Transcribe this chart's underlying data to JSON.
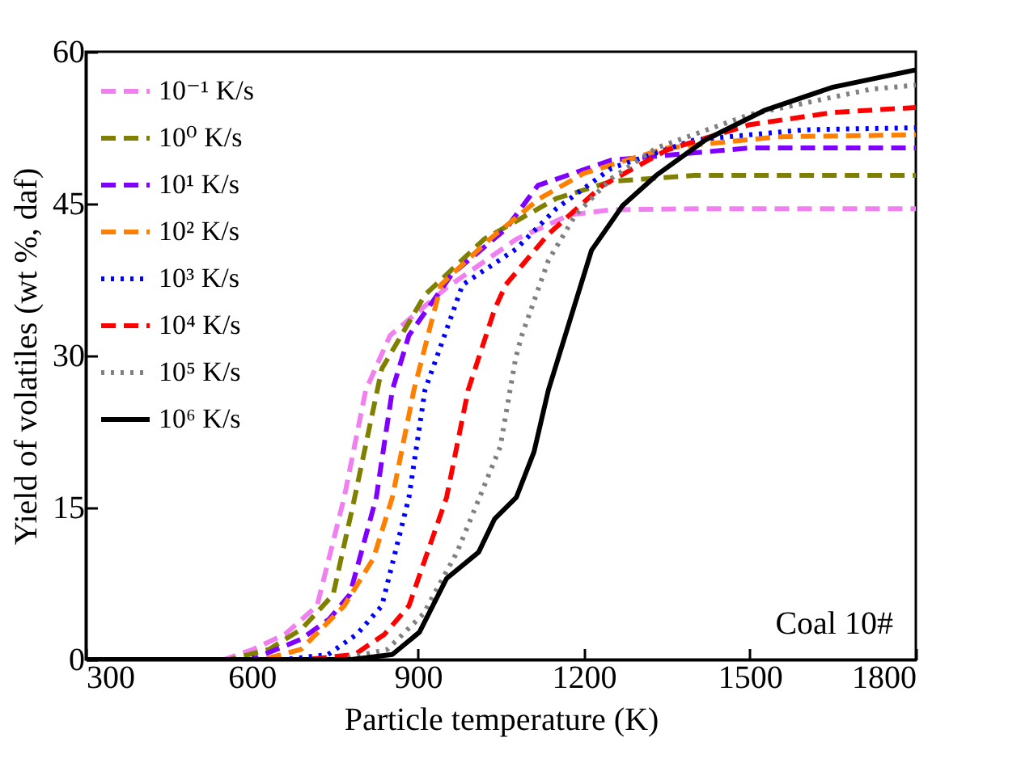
{
  "chart_data": {
    "type": "line",
    "xlabel": "Particle temperature (K)",
    "ylabel": "Yield of volatiles (wt %, daf)",
    "xlim": [
      300,
      1800
    ],
    "ylim": [
      0,
      60
    ],
    "xticks": [
      300,
      600,
      900,
      1200,
      1500,
      1800
    ],
    "yticks": [
      0,
      15,
      30,
      45,
      60
    ],
    "legend": "top left",
    "annotations": [
      "Coal 10#"
    ],
    "series": [
      {
        "name": "10⁻¹ K/s",
        "color": "#f080f0",
        "line_style": "dashed",
        "x": [
          300,
          550,
          602,
          660,
          718,
          767,
          806,
          850,
          952,
          1078,
          1175,
          1250,
          1400,
          1800
        ],
        "values": [
          0,
          0,
          1,
          2.5,
          5.3,
          16,
          26.6,
          32,
          36.7,
          41.5,
          43.9,
          44.4,
          44.5,
          44.5
        ]
      },
      {
        "name": "10⁰ K/s",
        "color": "#808000",
        "line_style": "dashed",
        "x": [
          300,
          560,
          631,
          690,
          747,
          786,
          835,
          913,
          1020,
          1150,
          1250,
          1400,
          1800
        ],
        "values": [
          0,
          0,
          1,
          3,
          6.4,
          16,
          28.7,
          36,
          41.5,
          45.5,
          47.2,
          47.8,
          47.8
        ]
      },
      {
        "name": "10¹ K/s",
        "color": "#8000ff",
        "line_style": "dashed",
        "x": [
          300,
          600,
          689,
          740,
          777,
          825,
          854,
          884,
          961,
          1059,
          1117,
          1250,
          1500,
          1800
        ],
        "values": [
          0,
          0,
          2,
          4,
          6.4,
          16,
          26.6,
          32,
          38,
          42.5,
          46.8,
          49.3,
          50.5,
          50.5
        ]
      },
      {
        "name": "10² K/s",
        "color": "#ff8000",
        "line_style": "dashed",
        "x": [
          300,
          620,
          689,
          767,
          820,
          854,
          893,
          942,
          1030,
          1120,
          1200,
          1350,
          1550,
          1800
        ],
        "values": [
          0,
          0,
          1,
          5.3,
          10,
          16,
          26.6,
          37,
          41.5,
          45.5,
          48,
          50.5,
          51.6,
          51.8
        ]
      },
      {
        "name": "10³ K/s",
        "color": "#0000ff",
        "line_style": "dotted",
        "x": [
          300,
          660,
          738,
          790,
          835,
          884,
          913,
          981,
          1077,
          1150,
          1250,
          1400,
          1600,
          1800
        ],
        "values": [
          0,
          0,
          0.5,
          2.5,
          5.3,
          16,
          26.6,
          37,
          40.5,
          44.5,
          48.5,
          51.3,
          52.3,
          52.5
        ]
      },
      {
        "name": "10⁴ K/s",
        "color": "#ff0000",
        "line_style": "dashed",
        "x": [
          300,
          700,
          786,
          840,
          884,
          952,
          991,
          1039,
          1059,
          1136,
          1234,
          1350,
          1500,
          1650,
          1800
        ],
        "values": [
          0,
          0,
          0.5,
          2.5,
          5.3,
          16,
          26.6,
          34.6,
          37,
          42,
          46.8,
          50.3,
          52.8,
          54,
          54.5
        ]
      },
      {
        "name": "10⁵ K/s",
        "color": "#808080",
        "line_style": "dotted",
        "x": [
          300,
          760,
          845,
          910,
          971,
          1049,
          1077,
          1088,
          1136,
          1185,
          1250,
          1331,
          1500,
          1719,
          1800
        ],
        "values": [
          0,
          0,
          1,
          4.5,
          10.6,
          21,
          29.8,
          32,
          39.4,
          43.9,
          47.5,
          50.5,
          53.8,
          56.3,
          56.7
        ]
      },
      {
        "name": "10⁶ K/s",
        "color": "#000000",
        "line_style": "solid",
        "x": [
          300,
          780,
          854,
          903,
          952,
          1010,
          1039,
          1078,
          1110,
          1136,
          1166,
          1214,
          1270,
          1331,
          1420,
          1526,
          1650,
          1800
        ],
        "values": [
          0,
          0,
          0.5,
          2.7,
          8,
          10.6,
          13.9,
          16,
          20.5,
          26.6,
          31.9,
          40.4,
          44.8,
          47.8,
          51.3,
          54.2,
          56.5,
          58.2
        ]
      }
    ]
  }
}
